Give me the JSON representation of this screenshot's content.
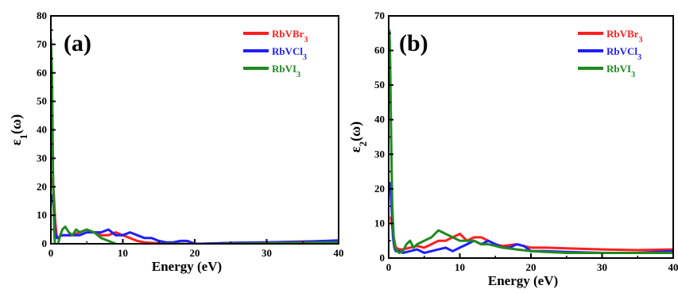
{
  "chart_data": [
    {
      "type": "line",
      "panel_label": "(a)",
      "xlabel": "Energy (eV)",
      "ylabel": {
        "main": "ε",
        "sub": "1",
        "suffix": "(ω)"
      },
      "xlim": [
        0,
        40
      ],
      "ylim": [
        0,
        80
      ],
      "xticks": [
        "0",
        "10",
        "20",
        "30",
        "40"
      ],
      "yticks": [
        "0",
        "10",
        "20",
        "30",
        "40",
        "50",
        "60",
        "70",
        "80"
      ],
      "legend_position": "top-right",
      "series": [
        {
          "name": "RbVBr3",
          "name_base": "RbVBr",
          "name_sub": "3",
          "color": "#ff1f1f",
          "x": [
            0,
            0.2,
            0.4,
            0.6,
            0.8,
            1.0,
            1.5,
            2,
            3,
            4,
            5,
            6,
            7,
            8,
            9,
            10,
            11,
            12,
            13,
            14,
            15,
            17,
            19,
            21,
            25,
            30,
            35,
            40
          ],
          "y": [
            22,
            23,
            18,
            8,
            3,
            2,
            3,
            3,
            3,
            4,
            5,
            4,
            3,
            3,
            4,
            3,
            2,
            1,
            0.5,
            0.3,
            0.2,
            0,
            0,
            0,
            0.3,
            0.5,
            0.8,
            1
          ]
        },
        {
          "name": "RbVCl3",
          "name_base": "RbVCl",
          "name_sub": "3",
          "color": "#1f1fff",
          "x": [
            0,
            0.2,
            0.4,
            0.6,
            0.8,
            1.0,
            1.5,
            2,
            3,
            4,
            5,
            6,
            7,
            8,
            9,
            10,
            11,
            12,
            13,
            14,
            15,
            16,
            17,
            18,
            19,
            20,
            21,
            25,
            30,
            35,
            40
          ],
          "y": [
            15,
            17,
            12,
            4,
            2,
            2,
            3,
            3,
            3,
            3,
            4,
            4,
            4,
            5,
            3,
            3,
            4,
            3,
            2,
            2,
            1,
            0.5,
            0.5,
            1,
            1,
            0,
            0,
            0.3,
            0.5,
            0.7,
            1.2
          ]
        },
        {
          "name": "RbVI3",
          "name_base": "RbVI",
          "name_sub": "3",
          "color": "#1f8a1f",
          "x": [
            0,
            0.15,
            0.3,
            0.45,
            0.6,
            0.8,
            1.0,
            1.3,
            1.6,
            2,
            2.5,
            3,
            3.5,
            4,
            5,
            6,
            7,
            8,
            9,
            10,
            11,
            12,
            14,
            16,
            18,
            20,
            25,
            30,
            35,
            40
          ],
          "y": [
            72,
            60,
            25,
            5,
            -2,
            -4,
            0,
            3,
            5,
            6,
            4,
            3,
            5,
            4,
            5,
            4,
            2,
            1,
            0,
            -1.5,
            -1,
            -0.5,
            -0.2,
            0,
            0,
            -0.2,
            0,
            0.2,
            0.4,
            0.5
          ]
        }
      ]
    },
    {
      "type": "line",
      "panel_label": "(b)",
      "xlabel": "Energy (eV)",
      "ylabel": {
        "main": "ε",
        "sub": "2",
        "suffix": "(ω)"
      },
      "xlim": [
        0,
        40
      ],
      "ylim": [
        0,
        70
      ],
      "xticks": [
        "0",
        "10",
        "20",
        "30",
        "40"
      ],
      "yticks": [
        "0",
        "10",
        "20",
        "30",
        "40",
        "50",
        "60",
        "70"
      ],
      "legend_position": "top-right",
      "series": [
        {
          "name": "RbVBr3",
          "name_base": "RbVBr",
          "name_sub": "3",
          "color": "#ff1f1f",
          "x": [
            0.3,
            0.5,
            0.7,
            1.0,
            1.5,
            2,
            3,
            4,
            5,
            6,
            7,
            8,
            9,
            10,
            11,
            12,
            13,
            14,
            15,
            16,
            18,
            20,
            22,
            25,
            30,
            35,
            40
          ],
          "y": [
            12,
            9,
            6,
            3,
            2.5,
            2.5,
            3,
            3.5,
            3,
            4,
            5,
            5,
            6,
            7,
            5,
            6,
            6,
            5,
            4,
            3.5,
            4,
            3,
            3,
            2.8,
            2.5,
            2.3,
            2.5
          ]
        },
        {
          "name": "RbVCl3",
          "name_base": "RbVCl",
          "name_sub": "3",
          "color": "#1f1fff",
          "x": [
            0.2,
            0.4,
            0.6,
            0.8,
            1.0,
            1.5,
            2,
            3,
            4,
            5,
            6,
            7,
            8,
            9,
            10,
            11,
            12,
            13,
            14,
            15,
            16,
            17,
            18,
            19,
            20,
            22,
            25,
            30,
            35,
            40
          ],
          "y": [
            22,
            15,
            6,
            3,
            2,
            2,
            1.5,
            2,
            2.5,
            1.5,
            2,
            2.5,
            3,
            2,
            3,
            4,
            5,
            4,
            5,
            4,
            3,
            3,
            4,
            3.5,
            2,
            2,
            1.8,
            1.5,
            1.5,
            2
          ]
        },
        {
          "name": "RbVI3",
          "name_base": "RbVI",
          "name_sub": "3",
          "color": "#1f8a1f",
          "x": [
            0.1,
            0.2,
            0.35,
            0.5,
            0.7,
            0.9,
            1.2,
            1.5,
            2,
            2.5,
            3,
            3.5,
            4,
            5,
            6,
            7,
            8,
            9,
            10,
            11,
            12,
            13,
            14,
            16,
            18,
            20,
            22,
            25,
            30,
            35,
            40
          ],
          "y": [
            66,
            58,
            35,
            15,
            6,
            3,
            2,
            1.5,
            2,
            4,
            5,
            3,
            4,
            5,
            6,
            8,
            7,
            6,
            5,
            5,
            5,
            4,
            4,
            3,
            2.5,
            2,
            1.8,
            1.5,
            1.5,
            1.5,
            1.5
          ]
        }
      ]
    }
  ]
}
